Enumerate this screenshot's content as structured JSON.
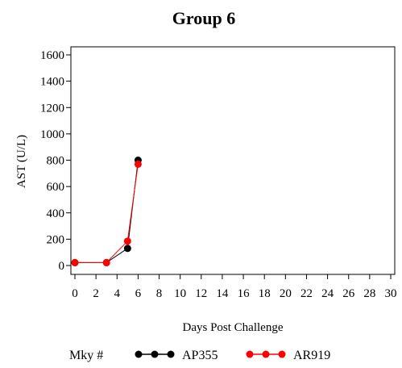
{
  "chart_data": {
    "type": "line",
    "title": "Group 6",
    "xlabel": "Days Post Challenge",
    "ylabel": "AST (U/L)",
    "xlim": [
      0,
      30
    ],
    "ylim": [
      0,
      1600
    ],
    "xticks": [
      0,
      2,
      4,
      6,
      8,
      10,
      12,
      14,
      16,
      18,
      20,
      22,
      24,
      26,
      28,
      30
    ],
    "yticks": [
      0,
      200,
      400,
      600,
      800,
      1000,
      1200,
      1400,
      1600
    ],
    "grid": false,
    "legend_title": "Mky #",
    "legend_position": "bottom",
    "series": [
      {
        "name": "AP355",
        "color": "#000000",
        "x": [
          0,
          3,
          5,
          6
        ],
        "y": [
          22,
          22,
          130,
          800
        ]
      },
      {
        "name": "AR919",
        "color": "#ff0000",
        "x": [
          0,
          3,
          5,
          6
        ],
        "y": [
          22,
          22,
          185,
          770
        ]
      }
    ]
  }
}
